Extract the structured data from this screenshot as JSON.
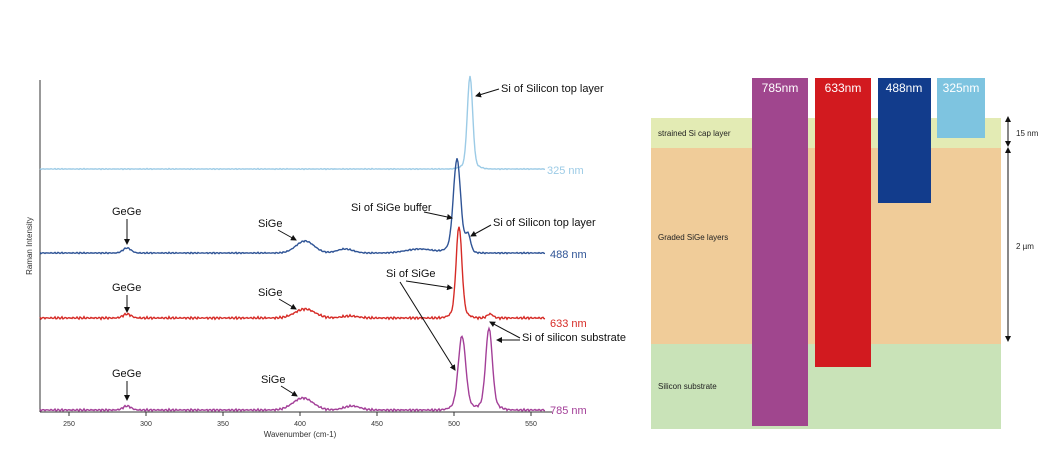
{
  "spectrum": {
    "ylabel": "Raman Intensity",
    "xlabel": "Wavenumber (cm-1)",
    "xticks": [
      "250",
      "300",
      "350",
      "400",
      "450",
      "500",
      "550"
    ],
    "traces": [
      {
        "label": "325 nm",
        "color": "#9ccbe6"
      },
      {
        "label": "488 nm",
        "color": "#2f5496"
      },
      {
        "label": "633 nm",
        "color": "#d62b26"
      },
      {
        "label": "785 nm",
        "color": "#a33f98"
      }
    ],
    "annotations": {
      "si_top_1": "Si of Silicon top layer",
      "si_sige_buffer": "Si of SiGe buffer",
      "si_top_2": "Si of Silicon top layer",
      "gege_1": "GeGe",
      "sige_1": "SiGe",
      "gege_2": "GeGe",
      "sige_2": "SiGe",
      "si_of_sige": "Si of SiGe",
      "si_substrate": "Si of silicon substrate",
      "gege_3": "GeGe",
      "sige_3": "SiGe"
    }
  },
  "layers": {
    "cap": {
      "label": "strained Si cap layer",
      "color": "#e3ebb4"
    },
    "graded": {
      "label": "Graded SiGe layers",
      "color": "#f0cc99"
    },
    "substrate": {
      "label": "Silicon substrate",
      "color": "#c9e3b8"
    },
    "dim_top": "15 nm",
    "dim_mid": "2 µm",
    "lasers": [
      {
        "label": "785nm",
        "color": "#a0468e"
      },
      {
        "label": "633nm",
        "color": "#d21a1f"
      },
      {
        "label": "488nm",
        "color": "#123c8c"
      },
      {
        "label": "325nm",
        "color": "#7ec4e0"
      }
    ]
  }
}
